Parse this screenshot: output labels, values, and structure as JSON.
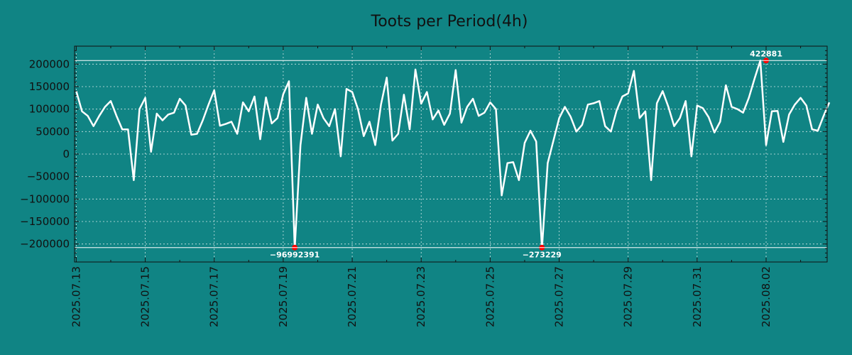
{
  "chart_data": {
    "type": "line",
    "title": "Toots per Period(4h)",
    "xlabel": "",
    "ylabel": "",
    "x_start": "2025-07-13",
    "x_step_days": 0.16667,
    "xlim": [
      -0.05,
      21.77
    ],
    "ylim": [
      -240000,
      240000
    ],
    "grid": true,
    "y_ticks": [
      200000,
      150000,
      100000,
      50000,
      0,
      -50000,
      -100000,
      -150000,
      -200000
    ],
    "y_tick_labels": [
      "200000",
      "150000",
      "100000",
      "50000",
      "0",
      "−50000",
      "−100000",
      "−150000",
      "−200000"
    ],
    "x_ticks": [
      0,
      2,
      4,
      6,
      8,
      10,
      12,
      14,
      16,
      18,
      20
    ],
    "x_tick_labels": [
      "2025.07.13",
      "2025.07.15",
      "2025.07.17",
      "2025.07.19",
      "2025.07.21",
      "2025.07.23",
      "2025.07.25",
      "2025.07.27",
      "2025.07.29",
      "2025.07.31",
      "2025.08.02"
    ],
    "series": [
      {
        "name": "toots",
        "color": "#ffffff",
        "values": [
          140000,
          95000,
          85000,
          62000,
          85000,
          105000,
          118000,
          85000,
          55000,
          55000,
          -58000,
          100000,
          125000,
          5000,
          90000,
          75000,
          88000,
          92000,
          123000,
          108000,
          43000,
          45000,
          75000,
          110000,
          142000,
          63000,
          67000,
          72000,
          45000,
          115000,
          95000,
          128000,
          33000,
          126000,
          68000,
          80000,
          133000,
          162000,
          -210000,
          20000,
          125000,
          45000,
          110000,
          80000,
          62000,
          100000,
          -5000,
          145000,
          138000,
          100000,
          40000,
          72000,
          20000,
          110000,
          170000,
          30000,
          45000,
          132000,
          55000,
          188000,
          112000,
          138000,
          77000,
          97000,
          65000,
          90000,
          187000,
          70000,
          105000,
          123000,
          85000,
          92000,
          115000,
          100000,
          -92000,
          -20000,
          -18000,
          -58000,
          25000,
          52000,
          28000,
          -210000,
          -20000,
          30000,
          80000,
          105000,
          83000,
          50000,
          65000,
          110000,
          113000,
          118000,
          62000,
          50000,
          97000,
          128000,
          135000,
          185000,
          80000,
          95000,
          -58000,
          113000,
          140000,
          105000,
          62000,
          80000,
          118000,
          -5000,
          108000,
          102000,
          82000,
          48000,
          72000,
          153000,
          105000,
          100000,
          92000,
          125000,
          168000,
          208000,
          20000,
          95000,
          96000,
          27000,
          88000,
          110000,
          125000,
          108000,
          55000,
          52000,
          85000,
          115000
        ]
      }
    ],
    "reference_lines": [
      208000,
      -208000
    ],
    "annotations": [
      {
        "label": "422881",
        "x_index": 120,
        "y": 208000,
        "position": "above"
      },
      {
        "label": "−96992391",
        "x_index": 38,
        "y": -208000,
        "position": "below"
      },
      {
        "label": "−273229",
        "x_index": 81,
        "y": -208000,
        "position": "below"
      }
    ],
    "marker_color": "#ff0000"
  }
}
